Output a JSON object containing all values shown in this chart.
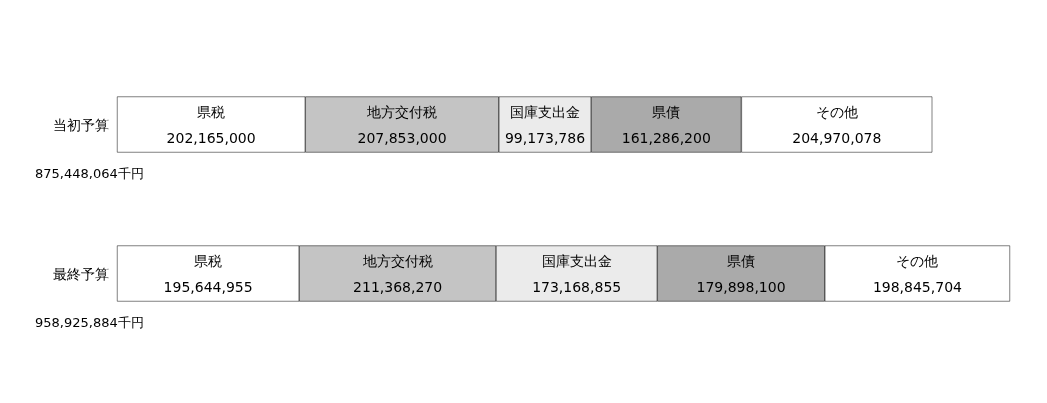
{
  "chart_data": {
    "type": "bar",
    "orientation": "horizontal",
    "stacked": true,
    "categories": [
      "当初予算",
      "最終予算"
    ],
    "series": [
      {
        "name": "県税",
        "color": "#ffffff",
        "values": [
          202165000,
          195644955
        ],
        "value_labels": [
          "202,165,000",
          "195,644,955"
        ]
      },
      {
        "name": "地方交付税",
        "color": "#c4c4c4",
        "values": [
          207853000,
          211368270
        ],
        "value_labels": [
          "207,853,000",
          "211,368,270"
        ]
      },
      {
        "name": "国庫支出金",
        "color": "#ebebeb",
        "values": [
          99173786,
          173168855
        ],
        "value_labels": [
          "99,173,786",
          "173,168,855"
        ]
      },
      {
        "name": "県債",
        "color": "#aaaaaa",
        "values": [
          161286200,
          179898100
        ],
        "value_labels": [
          "161,286,200",
          "179,898,100"
        ]
      },
      {
        "name": "その他",
        "color": "#ffffff",
        "values": [
          204970078,
          198845704
        ],
        "value_labels": [
          "204,970,078",
          "198,845,704"
        ]
      }
    ],
    "totals": [
      "875,448,064千円",
      "958,925,884千円"
    ]
  }
}
